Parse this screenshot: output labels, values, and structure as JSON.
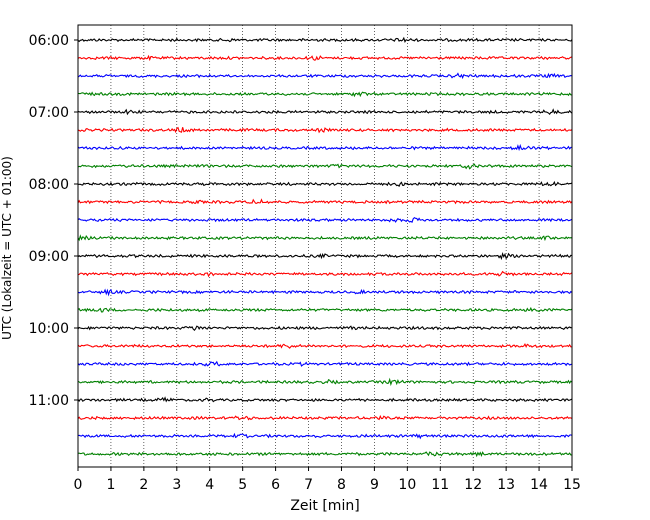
{
  "chart_data": {
    "type": "line",
    "title": "",
    "xlabel": "Zeit  [min]",
    "ylabel": "UTC (Lokalzeit = UTC + 01:00)",
    "xlim": [
      0,
      15
    ],
    "x_ticks": [
      0,
      1,
      2,
      3,
      4,
      5,
      6,
      7,
      8,
      9,
      10,
      11,
      12,
      13,
      14,
      15
    ],
    "x_tick_labels": [
      "0",
      "1",
      "2",
      "3",
      "4",
      "5",
      "6",
      "7",
      "8",
      "9",
      "10",
      "11",
      "12",
      "13",
      "14",
      "15"
    ],
    "y_tick_labels": [
      "06:00",
      "07:00",
      "08:00",
      "09:00",
      "10:00",
      "11:00"
    ],
    "x_grid": true,
    "x_grid_style": "dotted",
    "trace_interval_min": 15,
    "trace_colors": [
      "#000000",
      "#ff0000",
      "#0000ff",
      "#008000"
    ],
    "series": [
      {
        "start": "06:00",
        "color": "#000000"
      },
      {
        "start": "06:15",
        "color": "#ff0000"
      },
      {
        "start": "06:30",
        "color": "#0000ff"
      },
      {
        "start": "06:45",
        "color": "#008000"
      },
      {
        "start": "07:00",
        "color": "#000000"
      },
      {
        "start": "07:15",
        "color": "#ff0000"
      },
      {
        "start": "07:30",
        "color": "#0000ff"
      },
      {
        "start": "07:45",
        "color": "#008000"
      },
      {
        "start": "08:00",
        "color": "#000000"
      },
      {
        "start": "08:15",
        "color": "#ff0000"
      },
      {
        "start": "08:30",
        "color": "#0000ff"
      },
      {
        "start": "08:45",
        "color": "#008000"
      },
      {
        "start": "09:00",
        "color": "#000000"
      },
      {
        "start": "09:15",
        "color": "#ff0000"
      },
      {
        "start": "09:30",
        "color": "#0000ff"
      },
      {
        "start": "09:45",
        "color": "#008000"
      },
      {
        "start": "10:00",
        "color": "#000000"
      },
      {
        "start": "10:15",
        "color": "#ff0000"
      },
      {
        "start": "10:30",
        "color": "#0000ff"
      },
      {
        "start": "10:45",
        "color": "#008000"
      },
      {
        "start": "11:00",
        "color": "#000000"
      },
      {
        "start": "11:15",
        "color": "#ff0000"
      },
      {
        "start": "11:30",
        "color": "#0000ff"
      },
      {
        "start": "11:45",
        "color": "#008000"
      }
    ]
  }
}
